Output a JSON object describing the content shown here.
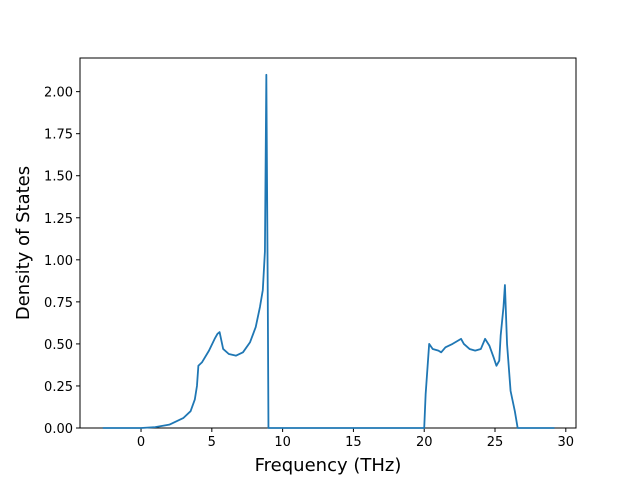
{
  "chart_data": {
    "type": "line",
    "xlabel": "Frequency (THz)",
    "ylabel": "Density of States",
    "x": [
      -2.7,
      0,
      1,
      2,
      3,
      3.5,
      3.8,
      3.95,
      4.05,
      4.3,
      4.8,
      5.2,
      5.4,
      5.55,
      5.8,
      6.2,
      6.7,
      7.2,
      7.7,
      8.1,
      8.4,
      8.6,
      8.75,
      8.85,
      8.95,
      9.0,
      20,
      20.1,
      20.35,
      20.6,
      21,
      21.2,
      21.5,
      22.0,
      22.6,
      22.8,
      23.2,
      23.6,
      24.0,
      24.3,
      24.6,
      24.9,
      25.1,
      25.3,
      25.4,
      25.6,
      25.7,
      25.85,
      26.1,
      26.4,
      26.6,
      29.2
    ],
    "series": [
      {
        "color": "#1f77b4",
        "values": [
          0,
          0,
          0.005,
          0.02,
          0.06,
          0.1,
          0.17,
          0.25,
          0.37,
          0.39,
          0.46,
          0.53,
          0.56,
          0.57,
          0.47,
          0.44,
          0.43,
          0.45,
          0.51,
          0.6,
          0.72,
          0.82,
          1.05,
          2.1,
          0.8,
          0,
          0,
          0.2,
          0.5,
          0.47,
          0.46,
          0.45,
          0.48,
          0.5,
          0.53,
          0.5,
          0.47,
          0.46,
          0.47,
          0.53,
          0.49,
          0.42,
          0.37,
          0.4,
          0.55,
          0.72,
          0.85,
          0.5,
          0.22,
          0.1,
          0,
          0
        ]
      }
    ],
    "xlim": [
      -4.31,
      30.72
    ],
    "ylim": [
      0,
      2.2
    ],
    "xticks": [
      0,
      5,
      10,
      15,
      20,
      25,
      30
    ],
    "yticks": [
      {
        "value": 0,
        "label": "0.00"
      },
      {
        "value": 0.25,
        "label": "0.25"
      },
      {
        "value": 0.5,
        "label": "0.50"
      },
      {
        "value": 0.75,
        "label": "0.75"
      },
      {
        "value": 1,
        "label": "1.00"
      },
      {
        "value": 1.25,
        "label": "1.25"
      },
      {
        "value": 1.5,
        "label": "1.50"
      },
      {
        "value": 1.75,
        "label": "1.75"
      },
      {
        "value": 2,
        "label": "2.00"
      }
    ]
  }
}
